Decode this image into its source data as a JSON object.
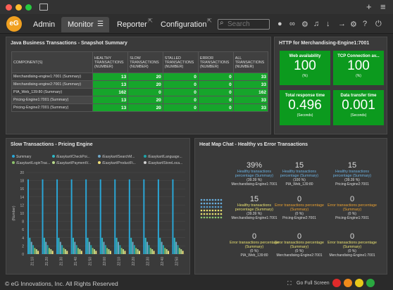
{
  "titlebar": {
    "plus": "+",
    "menu": "≡"
  },
  "logo": "eG",
  "tabs": [
    {
      "label": "Admin"
    },
    {
      "label": "Monitor",
      "menu": "☰"
    },
    {
      "label": "Reporter",
      "ext": "⇱"
    },
    {
      "label": "Configuration",
      "ext": "⇱"
    }
  ],
  "search": {
    "placeholder": "Search"
  },
  "business": {
    "title": "Java Business Transactions - Snapshot Summary",
    "headers": [
      "COMPONENT(S)",
      "HEALTHY TRANSACTIONS (NUMBER)",
      "SLOW TRANSACTIONS (NUMBER)",
      "STALLED TRANSACTIONS (NUMBER)",
      "ERROR TRANSACTIONS (NUMBER)",
      "ALL TRANSACTIONS (NUMBER)"
    ],
    "rows": [
      {
        "name": "Merchandising-engine1:7001 (Summary)",
        "v": [
          "13",
          "20",
          "0",
          "0",
          "33"
        ]
      },
      {
        "name": "Merchandising-engine2:7001 (Summary)",
        "v": [
          "13",
          "20",
          "0",
          "0",
          "33"
        ]
      },
      {
        "name": "PIA_Web_139:80 (Summary)",
        "v": [
          "162",
          "0",
          "0",
          "0",
          "162"
        ]
      },
      {
        "name": "Pricing-Engine1:7001 (Summary)",
        "v": [
          "13",
          "20",
          "0",
          "0",
          "33"
        ]
      },
      {
        "name": "Pricing-Engine2:7001 (Summary)",
        "v": [
          "13",
          "20",
          "0",
          "0",
          "33"
        ]
      }
    ]
  },
  "http": {
    "title": "HTTP for Merchandising-Engine1:7001",
    "tiles": [
      {
        "label": "Web availability",
        "value": "100",
        "unit": "(%)"
      },
      {
        "label": "TCP Connection av...",
        "value": "100",
        "unit": "(%)"
      },
      {
        "label": "Total response time",
        "value": "0.496",
        "unit": "(Seconds)"
      },
      {
        "label": "Data transfer time",
        "value": "0.001",
        "unit": "(Seconds)"
      }
    ]
  },
  "slow": {
    "title": "Slow Transactions - Pricing Engine",
    "legend": [
      {
        "label": "Summary",
        "color": "#2aa6d6"
      },
      {
        "label": "/Easykart/CheckPoi...",
        "color": "#2fb6c4"
      },
      {
        "label": "/Easykart/SearchM...",
        "color": "#6fa8c8"
      },
      {
        "label": "/Easykart/Language...",
        "color": "#1fa3a8"
      },
      {
        "label": "/Easykart/LoginTrac...",
        "color": "#8cc06a"
      },
      {
        "label": "/Easykart/PaymentV...",
        "color": "#b8d88a"
      },
      {
        "label": "/Easykart/ProductFi...",
        "color": "#f0e07a"
      },
      {
        "label": "/Easykart/StoreLoca...",
        "color": "#d0d0d0"
      }
    ]
  },
  "chart_data": {
    "type": "bar",
    "title": "Slow Transactions - Pricing Engine",
    "ylabel": "(Number)",
    "ylim": [
      0,
      20
    ],
    "yticks": [
      "0",
      "2",
      "4",
      "6",
      "8",
      "10",
      "12",
      "14",
      "16",
      "18",
      "20"
    ],
    "categories": [
      "21:10",
      "21:20",
      "21:30",
      "21:40",
      "21:50",
      "22:00",
      "22:10",
      "22:20",
      "22:30",
      "22:40",
      "22:50"
    ],
    "series": [
      {
        "name": "Summary",
        "color": "#2aa6d6",
        "values": [
          18.3,
          18.3,
          18.3,
          18.3,
          18.3,
          18.3,
          18.3,
          18.3,
          18.3,
          18.3,
          18.3
        ]
      },
      {
        "name": "/Easykart/CheckPoi...",
        "color": "#2fb6c4",
        "values": [
          4,
          4,
          4,
          4,
          4,
          4,
          4,
          4,
          4,
          4,
          4
        ]
      },
      {
        "name": "/Easykart/SearchM...",
        "color": "#6fa8c8",
        "values": [
          3,
          3,
          3,
          3,
          3,
          3,
          3,
          3,
          3,
          3,
          3
        ]
      },
      {
        "name": "/Easykart/Language...",
        "color": "#1fa3a8",
        "values": [
          2.2,
          2.2,
          2.2,
          2.2,
          2.2,
          2.2,
          2.2,
          2.2,
          2.2,
          2.2,
          2.2
        ]
      },
      {
        "name": "/Easykart/LoginTrac...",
        "color": "#8cc06a",
        "values": [
          1.5,
          1.5,
          1.5,
          1.5,
          1.5,
          1.5,
          1.5,
          1.5,
          1.5,
          1.5,
          1.5
        ]
      },
      {
        "name": "/Easykart/PaymentV...",
        "color": "#b8d88a",
        "values": [
          1.2,
          1.2,
          1.2,
          1.2,
          1.2,
          1.2,
          1.2,
          1.2,
          1.2,
          1.2,
          1.2
        ]
      },
      {
        "name": "/Easykart/ProductFi...",
        "color": "#f0e07a",
        "values": [
          0.8,
          0.8,
          0.8,
          0.8,
          0.8,
          0.8,
          0.8,
          0.8,
          0.8,
          0.8,
          0.8
        ]
      }
    ]
  },
  "heatmap": {
    "title": "Heat Map Chat - Healthy vs Error Transactions",
    "cells": [
      {
        "pct": "39%",
        "desc": "Healthy transactions percentage (Summary)",
        "sub": "(39.39 %)",
        "ent": "Merchandising-Engine1:7001",
        "color": "#6ab0e0"
      },
      {
        "pct": "15",
        "desc": "Healthy transactions percentage (Summary)",
        "sub": "(100 %)",
        "ent": "PIA_Web_139:80",
        "color": "#6ab0e0"
      },
      {
        "pct": "15",
        "desc": "Healthy transactions percentage (Summary)",
        "sub": "(39.39 %)",
        "ent": "Pricing-Engine2:7001",
        "color": "#6ab0e0"
      },
      {
        "pct": "15",
        "desc": "Healthy transactions percentage (Summary)",
        "sub": "(39.39 %)",
        "ent": "Pricing-Engine1:7001",
        "color": "#6ab0e0"
      },
      {
        "pct": "15",
        "desc": "Healthy transactions percentage (Summary)",
        "sub": "(39.39 %)",
        "ent": "Merchandising-Engine1:7001",
        "color": "#e8e070"
      },
      {
        "pct": "0",
        "desc": "Error transactions percentage (Summary)",
        "sub": "(0 %)",
        "ent": "Pricing-Engine2:7001",
        "color": "#e8a030"
      },
      {
        "pct": "0",
        "desc": "Error transactions percentage (Summary)",
        "sub": "(0 %)",
        "ent": "Pricing-Engine1:7001",
        "color": "#e8a030"
      },
      {
        "pct": "0",
        "desc": "Error transactions percentage (Summary)",
        "sub": "(0 %)",
        "ent": "PIA_Web_139:80",
        "color": "#e8e070"
      },
      {
        "pct": "0",
        "desc": "Error transactions percentage (Summary)",
        "sub": "(0 %)",
        "ent": "Merchandising-Engine2:7001",
        "color": "#e8e070"
      },
      {
        "pct": "0",
        "desc": "Error transactions percentage (Summary)",
        "sub": "(0 %)",
        "ent": "Merchandising-Engine1:7001",
        "color": "#e8e070"
      }
    ]
  },
  "footer": {
    "copyright": "© eG Innovations, Inc. All Rights Reserved",
    "fullscreen": "Go Full Screen",
    "alert_counts": {
      "critical": "",
      "major": "",
      "minor": "",
      "normal": ""
    }
  }
}
